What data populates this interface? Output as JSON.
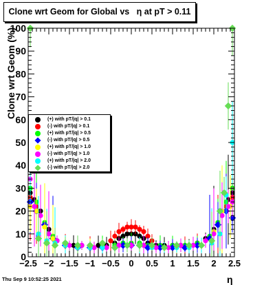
{
  "title": "Clone wrt Geom for Global vs   η at pT > 0.11",
  "footer_date": "Thu Sep  9 10:52:25 2021",
  "chart_data": {
    "type": "scatter",
    "title": "Clone wrt Geom for Global vs   η at pT > 0.11",
    "xlabel": "η",
    "ylabel": "Clone wrt Geom (%)",
    "xlim": [
      -2.5,
      2.5
    ],
    "ylim": [
      0,
      100
    ],
    "xticks": [
      -2.5,
      -2,
      -1.5,
      -1,
      -0.5,
      0,
      0.5,
      1,
      1.5,
      2,
      2.5
    ],
    "xtick_labels": [
      "−2.5",
      "−2",
      "−1.5",
      "−1",
      "−0.5",
      "0",
      "0.5",
      "1",
      "1.5",
      "2",
      "2.5"
    ],
    "yticks": [
      0,
      10,
      20,
      30,
      40,
      50,
      60,
      70,
      80,
      90,
      100
    ],
    "ytick_labels": [
      "0",
      "10",
      "20",
      "30",
      "40",
      "50",
      "60",
      "70",
      "80",
      "90",
      "100"
    ],
    "grid": false,
    "legend_position": "left-middle",
    "series": [
      {
        "name": "(+) with pT/|q| > 0.1",
        "color": "#000000",
        "marker": "circle",
        "x": [
          -2.45,
          -2.35,
          -2.2,
          -2.0,
          -1.8,
          -1.6,
          -1.4,
          -1.2,
          -1.0,
          -0.8,
          -0.6,
          -0.4,
          -0.3,
          -0.2,
          -0.1,
          0.0,
          0.1,
          0.2,
          0.3,
          0.4,
          0.6,
          0.8,
          1.0,
          1.2,
          1.4,
          1.6,
          1.8,
          2.0,
          2.2,
          2.35,
          2.45
        ],
        "y": [
          28,
          25,
          20,
          12,
          7,
          6,
          5,
          5,
          5,
          5,
          5,
          6,
          8,
          9,
          10,
          10,
          10,
          9,
          8,
          6,
          5,
          5,
          5,
          5,
          5,
          6,
          8,
          12,
          20,
          25,
          28
        ]
      },
      {
        "name": "(-) with pT/|q| > 0.1",
        "color": "#ff0000",
        "marker": "circle",
        "x": [
          -2.45,
          -2.3,
          -2.1,
          -1.9,
          -1.6,
          -1.3,
          -1.0,
          -0.7,
          -0.5,
          -0.4,
          -0.3,
          -0.2,
          -0.1,
          0.0,
          0.1,
          0.2,
          0.3,
          0.4,
          0.5,
          0.7,
          1.0,
          1.3,
          1.6,
          1.9,
          2.1,
          2.3,
          2.45
        ],
        "y": [
          26,
          22,
          14,
          8,
          6,
          5,
          5,
          5,
          7,
          9,
          11,
          12,
          13,
          13,
          13,
          12,
          11,
          9,
          7,
          5,
          5,
          5,
          6,
          8,
          14,
          22,
          26
        ]
      },
      {
        "name": "(+) with pT/|q| > 0.5",
        "color": "#00ff00",
        "marker": "circle",
        "x": [
          -2.45,
          -2.3,
          -2.1,
          -1.9,
          -1.6,
          -1.3,
          -1.0,
          -0.7,
          -0.4,
          -0.2,
          0.0,
          0.2,
          0.4,
          0.7,
          1.0,
          1.3,
          1.6,
          1.9,
          2.1,
          2.3,
          2.45
        ],
        "y": [
          30,
          24,
          15,
          9,
          6,
          5,
          5,
          5,
          5,
          6,
          6,
          6,
          5,
          5,
          5,
          5,
          6,
          9,
          15,
          24,
          30
        ]
      },
      {
        "name": "(-) with pT/|q| > 0.5",
        "color": "#0000ff",
        "marker": "diamond",
        "x": [
          -2.45,
          -2.3,
          -2.1,
          -1.9,
          -1.6,
          -1.3,
          -1.0,
          -0.7,
          -0.4,
          -0.2,
          0.0,
          0.2,
          0.4,
          0.7,
          1.0,
          1.3,
          1.6,
          1.9,
          2.1,
          2.3,
          2.45
        ],
        "y": [
          24,
          20,
          14,
          8,
          5,
          4,
          4,
          4,
          4,
          5,
          5,
          5,
          4,
          4,
          4,
          4,
          5,
          8,
          14,
          20,
          17
        ]
      },
      {
        "name": "(+) with pT/|q| > 1.0",
        "color": "#ffff00",
        "marker": "circle",
        "x": [
          -2.45,
          -2.3,
          -2.1,
          -1.9,
          -1.6,
          -1.3,
          -1.0,
          -0.7,
          -0.4,
          -0.1,
          0.2,
          0.5,
          0.8,
          1.1,
          1.4,
          1.7,
          2.0,
          2.2,
          2.4
        ],
        "y": [
          22,
          20,
          13,
          8,
          5,
          4,
          4,
          4,
          4,
          5,
          5,
          4,
          4,
          4,
          4,
          5,
          11,
          20,
          22
        ]
      },
      {
        "name": "(-) with pT/|q| > 1.0",
        "color": "#ff00ff",
        "marker": "circle",
        "x": [
          -2.45,
          -2.35,
          -2.2,
          -2.0,
          -1.8,
          -1.5,
          -1.2,
          -0.9,
          -0.6,
          -0.3,
          0.0,
          0.3,
          0.6,
          0.9,
          1.2,
          1.5,
          1.8,
          2.0,
          2.2,
          2.35,
          2.45
        ],
        "y": [
          34,
          22,
          18,
          10,
          7,
          5,
          5,
          4,
          4,
          5,
          5,
          5,
          4,
          4,
          5,
          5,
          7,
          10,
          18,
          22,
          24
        ]
      },
      {
        "name": "(+) with pT/|q| > 2.0",
        "color": "#00ffff",
        "marker": "circle",
        "x": [
          -2.45,
          -2.25,
          -2.05,
          -1.85,
          -1.6,
          -1.3,
          -1.0,
          -0.7,
          -0.4,
          -0.1,
          0.2,
          0.5,
          0.8,
          1.1,
          1.4,
          1.7,
          1.95,
          2.15,
          2.3,
          2.45
        ],
        "y": [
          38,
          10,
          7,
          6,
          5,
          4,
          4,
          4,
          4,
          5,
          5,
          4,
          4,
          4,
          4,
          5,
          6,
          10,
          27,
          50
        ]
      },
      {
        "name": "(-) with pT/|q| > 2.0",
        "color": "#66dd55",
        "marker": "diamond",
        "x": [
          -2.45,
          -2.25,
          -2.05,
          -1.85,
          -1.6,
          -1.3,
          -1.0,
          -0.7,
          -0.4,
          -0.1,
          0.2,
          0.5,
          0.8,
          1.1,
          1.4,
          1.7,
          1.95,
          2.15,
          2.25,
          2.35,
          2.45
        ],
        "y": [
          100,
          8,
          6,
          5,
          6,
          5,
          5,
          6,
          4,
          5,
          5,
          5,
          4,
          5,
          5,
          5,
          7,
          20,
          28,
          66,
          100
        ]
      }
    ]
  }
}
